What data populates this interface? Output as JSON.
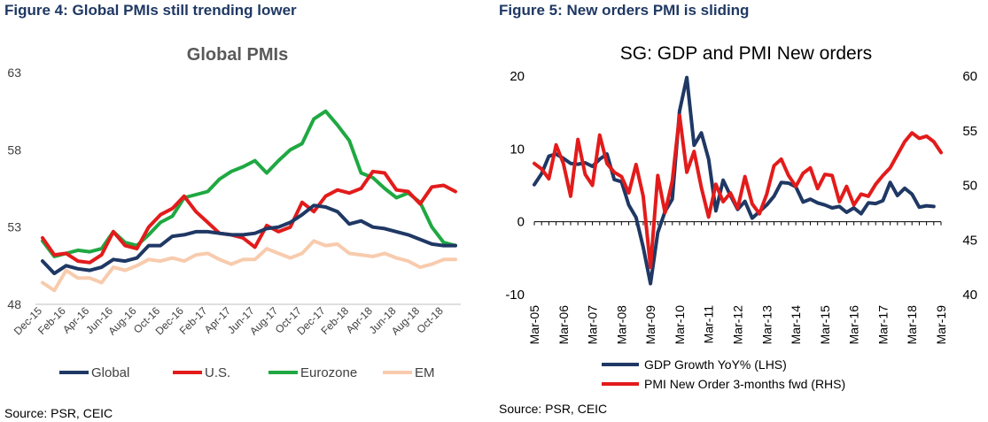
{
  "figures": [
    {
      "caption": "Figure 4: Global PMIs still trending lower",
      "source": "Source: PSR, CEIC"
    },
    {
      "caption": "Figure 5: New orders PMI is sliding",
      "source": "Source: PSR, CEIC"
    }
  ],
  "chart_data": [
    {
      "type": "line",
      "title": "Global PMIs",
      "xlabel": "",
      "ylabel": "",
      "ylim": [
        48,
        63
      ],
      "yticks": [
        48,
        53,
        58,
        63
      ],
      "grid": false,
      "legend": "bottom",
      "x": [
        "Dec-15",
        "Jan-16",
        "Feb-16",
        "Mar-16",
        "Apr-16",
        "May-16",
        "Jun-16",
        "Jul-16",
        "Aug-16",
        "Sep-16",
        "Oct-16",
        "Nov-16",
        "Dec-16",
        "Jan-17",
        "Feb-17",
        "Mar-17",
        "Apr-17",
        "May-17",
        "Jun-17",
        "Jul-17",
        "Aug-17",
        "Sep-17",
        "Oct-17",
        "Nov-17",
        "Dec-17",
        "Jan-18",
        "Feb-18",
        "Mar-18",
        "Apr-18",
        "May-18",
        "Jun-18",
        "Jul-18",
        "Aug-18",
        "Sep-18",
        "Oct-18",
        "Nov-18"
      ],
      "xtick_labels": [
        "Dec-15",
        "Feb-16",
        "Apr-16",
        "Jun-16",
        "Aug-16",
        "Oct-16",
        "Dec-16",
        "Feb-17",
        "Apr-17",
        "Jun-17",
        "Aug-17",
        "Oct-17",
        "Dec-17",
        "Feb-18",
        "Apr-18",
        "Jun-18",
        "Aug-18",
        "Oct-18"
      ],
      "series": [
        {
          "name": "Global",
          "color": "#1f3864",
          "values": [
            50.8,
            50.0,
            50.5,
            50.3,
            50.2,
            50.4,
            50.9,
            50.8,
            51.0,
            51.8,
            51.8,
            52.4,
            52.5,
            52.7,
            52.7,
            52.6,
            52.5,
            52.5,
            52.6,
            52.9,
            53.0,
            53.3,
            53.8,
            54.4,
            54.3,
            54.0,
            53.2,
            53.4,
            53.0,
            52.9,
            52.7,
            52.5,
            52.2,
            51.9,
            51.8,
            51.8
          ]
        },
        {
          "name": "U.S.",
          "color": "#e31b1b",
          "values": [
            52.3,
            51.2,
            51.3,
            50.8,
            50.7,
            51.2,
            52.7,
            51.8,
            51.6,
            53.0,
            53.8,
            54.2,
            55.0,
            54.0,
            53.3,
            52.6,
            52.5,
            52.3,
            51.7,
            53.1,
            52.7,
            53.0,
            54.6,
            54.0,
            55.0,
            55.4,
            55.2,
            55.5,
            56.6,
            56.5,
            55.4,
            55.3,
            54.5,
            55.6,
            55.7,
            55.3
          ]
        },
        {
          "name": "Eurozone",
          "color": "#1fa842",
          "values": [
            52.1,
            51.1,
            51.3,
            51.5,
            51.4,
            51.6,
            52.7,
            52.0,
            51.8,
            52.5,
            53.3,
            53.7,
            54.9,
            55.1,
            55.3,
            56.1,
            56.6,
            56.9,
            57.3,
            56.5,
            57.3,
            58.0,
            58.4,
            60.0,
            60.5,
            59.6,
            58.6,
            56.5,
            56.2,
            55.5,
            54.9,
            55.2,
            54.6,
            53.0,
            52.0,
            51.8
          ]
        },
        {
          "name": "EM",
          "color": "#f8cbad",
          "values": [
            49.4,
            48.9,
            50.2,
            49.7,
            49.7,
            49.4,
            50.4,
            50.2,
            50.5,
            50.9,
            50.8,
            51.0,
            50.8,
            51.2,
            51.3,
            50.9,
            50.6,
            50.9,
            50.9,
            51.6,
            51.3,
            51.0,
            51.3,
            52.1,
            51.8,
            51.9,
            51.3,
            51.2,
            51.1,
            51.3,
            51.0,
            50.8,
            50.4,
            50.6,
            50.9,
            50.9
          ]
        }
      ]
    },
    {
      "type": "line",
      "title": "SG: GDP and PMI New orders",
      "xlabel": "",
      "ylabel": "",
      "ylim": [
        -10,
        20
      ],
      "yticks": [
        -10,
        0,
        10,
        20
      ],
      "y2lim": [
        40,
        60
      ],
      "y2ticks": [
        40,
        45,
        50,
        55,
        60
      ],
      "grid": false,
      "legend": "bottom",
      "xtick_labels": [
        "Mar-05",
        "Mar-06",
        "Mar-07",
        "Mar-08",
        "Mar-09",
        "Mar-10",
        "Mar-11",
        "Mar-12",
        "Mar-13",
        "Mar-14",
        "Mar-15",
        "Mar-16",
        "Mar-17",
        "Mar-18",
        "Mar-19"
      ],
      "x_range": [
        2005,
        2019
      ],
      "series": [
        {
          "name": "GDP Growth YoY% (LHS)",
          "color": "#1f3864",
          "axis": "left",
          "x": [
            2005.0,
            2005.25,
            2005.5,
            2005.75,
            2006.0,
            2006.25,
            2006.5,
            2006.75,
            2007.0,
            2007.25,
            2007.5,
            2007.75,
            2008.0,
            2008.25,
            2008.5,
            2008.75,
            2009.0,
            2009.25,
            2009.5,
            2009.75,
            2010.0,
            2010.25,
            2010.5,
            2010.75,
            2011.0,
            2011.25,
            2011.5,
            2011.75,
            2012.0,
            2012.25,
            2012.5,
            2012.75,
            2013.0,
            2013.25,
            2013.5,
            2013.75,
            2014.0,
            2014.25,
            2014.5,
            2014.75,
            2015.0,
            2015.25,
            2015.5,
            2015.75,
            2016.0,
            2016.25,
            2016.5,
            2016.75,
            2017.0,
            2017.25,
            2017.5,
            2017.75,
            2018.0,
            2018.25,
            2018.5,
            2018.75
          ],
          "values": [
            5.1,
            6.6,
            9.0,
            9.3,
            8.7,
            8.0,
            7.9,
            8.1,
            7.6,
            8.6,
            9.3,
            5.8,
            5.5,
            2.3,
            0.6,
            -3.5,
            -8.5,
            -1.5,
            1.4,
            3.1,
            15.2,
            19.8,
            10.5,
            12.2,
            8.6,
            1.5,
            5.7,
            3.6,
            1.7,
            2.8,
            0.5,
            1.4,
            2.3,
            3.5,
            5.4,
            5.3,
            4.8,
            2.7,
            3.1,
            2.6,
            2.3,
            1.9,
            2.1,
            1.3,
            1.9,
            1.1,
            2.6,
            2.5,
            2.9,
            5.4,
            3.6,
            4.6,
            3.8,
            2.0,
            2.2,
            2.1
          ]
        },
        {
          "name": "PMI New Order 3-months fwd (RHS)",
          "color": "#e31b1b",
          "axis": "right",
          "x": [
            2005.0,
            2005.25,
            2005.5,
            2005.75,
            2006.0,
            2006.25,
            2006.5,
            2006.75,
            2007.0,
            2007.25,
            2007.5,
            2007.75,
            2008.0,
            2008.25,
            2008.5,
            2008.75,
            2009.0,
            2009.25,
            2009.5,
            2009.75,
            2010.0,
            2010.25,
            2010.5,
            2010.75,
            2011.0,
            2011.25,
            2011.5,
            2011.75,
            2012.0,
            2012.25,
            2012.5,
            2012.75,
            2013.0,
            2013.25,
            2013.5,
            2013.75,
            2014.0,
            2014.25,
            2014.5,
            2014.75,
            2015.0,
            2015.25,
            2015.5,
            2015.75,
            2016.0,
            2016.25,
            2016.5,
            2016.75,
            2017.0,
            2017.25,
            2017.5,
            2017.75,
            2018.0,
            2018.25,
            2018.5,
            2018.75,
            2019.0
          ],
          "values": [
            52.0,
            51.5,
            50.6,
            53.7,
            52.0,
            49.0,
            54.2,
            51.0,
            50.0,
            54.6,
            52.0,
            51.2,
            50.8,
            49.3,
            51.9,
            49.0,
            42.5,
            50.9,
            47.5,
            50.4,
            56.4,
            51.2,
            53.1,
            49.8,
            47.1,
            50.1,
            48.5,
            49.3,
            47.9,
            50.8,
            48.3,
            47.4,
            49.2,
            51.8,
            52.4,
            50.9,
            49.9,
            51.1,
            51.6,
            49.7,
            51.0,
            50.9,
            48.5,
            49.9,
            48.2,
            49.2,
            49.0,
            50.1,
            50.9,
            51.6,
            52.8,
            54.0,
            54.8,
            54.3,
            54.5,
            54.0,
            53.0
          ]
        }
      ]
    }
  ]
}
